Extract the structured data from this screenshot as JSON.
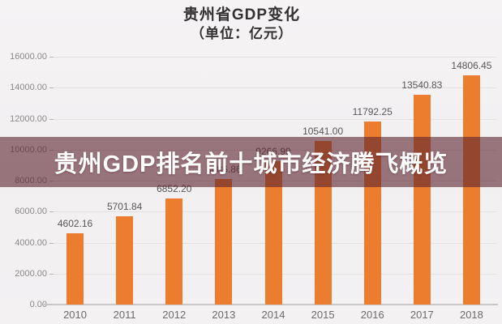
{
  "title": {
    "line1": "贵州省GDP变化",
    "line2": "（单位：亿元）"
  },
  "banner": {
    "text": "贵州GDP排名前十城市经济腾飞概览",
    "bg_color": "#5C212F",
    "text_color": "#FFFFFF"
  },
  "chart_data": {
    "type": "bar",
    "title": "贵州省GDP变化（单位：亿元）",
    "categories": [
      "2010",
      "2011",
      "2012",
      "2013",
      "2014",
      "2015",
      "2016",
      "2017",
      "2018"
    ],
    "values": [
      4602.16,
      5701.84,
      6852.2,
      8086.86,
      9266.99,
      10541.0,
      11792.25,
      13540.83,
      14806.45
    ],
    "value_labels": [
      "4602.16",
      "5701.84",
      "6852.20",
      "8086.86",
      "9266.99",
      "10541.00",
      "11792.25",
      "13540.83",
      "14806.45"
    ],
    "xlabel": "",
    "ylabel": "",
    "ylim": [
      0,
      16000
    ],
    "yticks": [
      {
        "label": "0.00",
        "value": 0
      },
      {
        "label": "2000.00",
        "value": 2000
      },
      {
        "label": "4000.00",
        "value": 4000
      },
      {
        "label": "6000.00",
        "value": 6000
      },
      {
        "label": "8000.00",
        "value": 8000
      },
      {
        "label": "10000.00",
        "value": 10000
      },
      {
        "label": "12000.00",
        "value": 12000
      },
      {
        "label": "14000.00",
        "value": 14000
      },
      {
        "label": "16000.00",
        "value": 16000
      }
    ],
    "grid": true,
    "legend": false,
    "bar_color": "#EC7D2E"
  }
}
